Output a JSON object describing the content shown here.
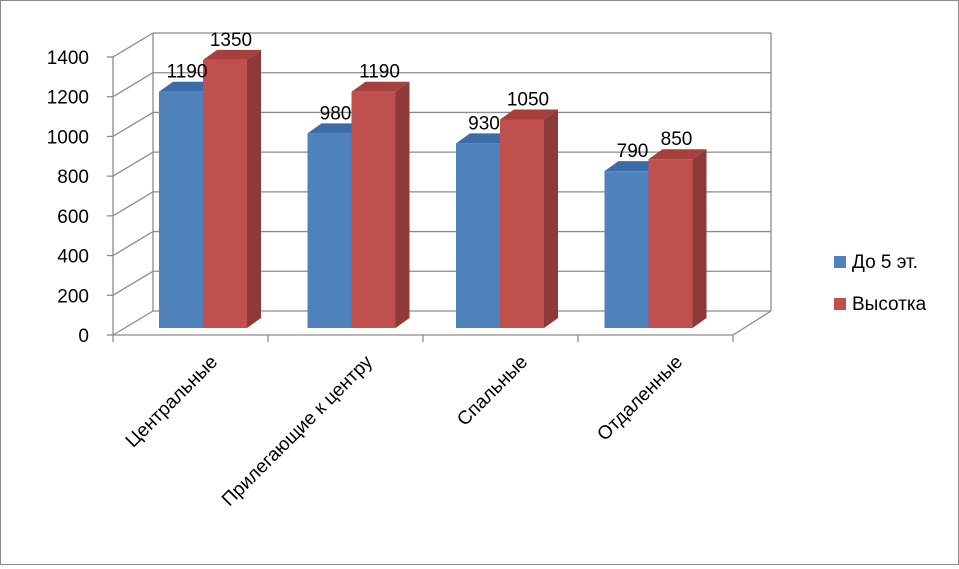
{
  "chart_data": {
    "type": "bar",
    "title": "",
    "xlabel": "",
    "ylabel": "",
    "categories": [
      "Центральные",
      "Прилегающие к центру",
      "Спальные",
      "Отдаленные"
    ],
    "series": [
      {
        "name": "До 5 эт.",
        "values": [
          1190,
          980,
          930,
          790
        ],
        "color": "#4f81bd",
        "side": "#3a6496",
        "top": "#3d6ba8"
      },
      {
        "name": "Высотка",
        "values": [
          1350,
          1190,
          1050,
          850
        ],
        "color": "#c0504d",
        "side": "#8e3a38",
        "top": "#a5403d"
      }
    ],
    "y_ticks": [
      "0",
      "200",
      "400",
      "600",
      "800",
      "1000",
      "1200",
      "1400"
    ],
    "ylim": [
      0,
      1400
    ],
    "grid": true,
    "legend_position": "right",
    "style": "3d-clustered-column",
    "colors": {
      "grid": "#8c8c8c",
      "axis": "#8c8c8c"
    }
  }
}
